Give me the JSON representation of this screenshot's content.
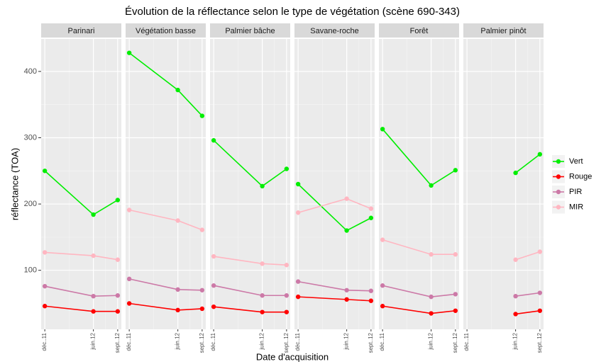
{
  "title": "Évolution de la réflectance selon le type de végétation (scène 690-343)",
  "x_label": "Date d'acquisition",
  "y_label": "réflectance (TOA)",
  "chart_data": [
    {
      "type": "line",
      "title": "Parinari",
      "x": [
        "2011-12",
        "2012-06",
        "2012-09"
      ],
      "xlim": [
        "2011-12",
        "2012-09"
      ],
      "xticks": [
        {
          "value": "2011-12",
          "label": "déc..11"
        },
        {
          "value": "2012-06",
          "label": "juin.12"
        },
        {
          "value": "2012-09",
          "label": "sept..12"
        }
      ],
      "ylim": [
        11,
        449
      ],
      "yticks": [
        100,
        200,
        300,
        400
      ],
      "grid": true,
      "series": [
        {
          "name": "Vert",
          "color": "#00ee00",
          "values": [
            250,
            184,
            206
          ]
        },
        {
          "name": "Rouge",
          "color": "#ff0000",
          "values": [
            46,
            38,
            38
          ]
        },
        {
          "name": "PIR",
          "color": "#cc79a7",
          "values": [
            76,
            61,
            62
          ]
        },
        {
          "name": "MIR",
          "color": "#ffb6c1",
          "values": [
            127,
            122,
            116
          ]
        }
      ]
    },
    {
      "type": "line",
      "title": "Végétation basse",
      "x": [
        "2011-12",
        "2012-06",
        "2012-09"
      ],
      "xlim": [
        "2011-12",
        "2012-09"
      ],
      "xticks": [
        {
          "value": "2011-12",
          "label": "déc..11"
        },
        {
          "value": "2012-06",
          "label": "juin.12"
        },
        {
          "value": "2012-09",
          "label": "sept..12"
        }
      ],
      "ylim": [
        11,
        449
      ],
      "yticks": [
        100,
        200,
        300,
        400
      ],
      "grid": true,
      "series": [
        {
          "name": "Vert",
          "color": "#00ee00",
          "values": [
            428,
            372,
            333
          ]
        },
        {
          "name": "Rouge",
          "color": "#ff0000",
          "values": [
            50,
            40,
            42
          ]
        },
        {
          "name": "PIR",
          "color": "#cc79a7",
          "values": [
            87,
            71,
            70
          ]
        },
        {
          "name": "MIR",
          "color": "#ffb6c1",
          "values": [
            191,
            175,
            161
          ]
        }
      ]
    },
    {
      "type": "line",
      "title": "Palmier bâche",
      "x": [
        "2011-12",
        "2012-06",
        "2012-09"
      ],
      "xlim": [
        "2011-12",
        "2012-09"
      ],
      "xticks": [
        {
          "value": "2011-12",
          "label": "déc..11"
        },
        {
          "value": "2012-06",
          "label": "juin.12"
        },
        {
          "value": "2012-09",
          "label": "sept..12"
        }
      ],
      "ylim": [
        11,
        449
      ],
      "yticks": [
        100,
        200,
        300,
        400
      ],
      "grid": true,
      "series": [
        {
          "name": "Vert",
          "color": "#00ee00",
          "values": [
            296,
            227,
            253
          ]
        },
        {
          "name": "Rouge",
          "color": "#ff0000",
          "values": [
            45,
            37,
            37
          ]
        },
        {
          "name": "PIR",
          "color": "#cc79a7",
          "values": [
            77,
            62,
            62
          ]
        },
        {
          "name": "MIR",
          "color": "#ffb6c1",
          "values": [
            121,
            110,
            108
          ]
        }
      ]
    },
    {
      "type": "line",
      "title": "Savane-roche",
      "x": [
        "2011-12",
        "2012-06",
        "2012-09"
      ],
      "xlim": [
        "2011-12",
        "2012-09"
      ],
      "xticks": [
        {
          "value": "2011-12",
          "label": "déc..11"
        },
        {
          "value": "2012-06",
          "label": "juin.12"
        },
        {
          "value": "2012-09",
          "label": "sept..12"
        }
      ],
      "ylim": [
        11,
        449
      ],
      "yticks": [
        100,
        200,
        300,
        400
      ],
      "grid": true,
      "series": [
        {
          "name": "Vert",
          "color": "#00ee00",
          "values": [
            230,
            160,
            179
          ]
        },
        {
          "name": "Rouge",
          "color": "#ff0000",
          "values": [
            60,
            56,
            54
          ]
        },
        {
          "name": "PIR",
          "color": "#cc79a7",
          "values": [
            83,
            70,
            69
          ]
        },
        {
          "name": "MIR",
          "color": "#ffb6c1",
          "values": [
            187,
            208,
            193
          ]
        }
      ]
    },
    {
      "type": "line",
      "title": "Forêt",
      "x": [
        "2011-12",
        "2012-06",
        "2012-09"
      ],
      "xlim": [
        "2011-12",
        "2012-09"
      ],
      "xticks": [
        {
          "value": "2011-12",
          "label": "déc..11"
        },
        {
          "value": "2012-06",
          "label": "juin.12"
        },
        {
          "value": "2012-09",
          "label": "sept..12"
        }
      ],
      "ylim": [
        11,
        449
      ],
      "yticks": [
        100,
        200,
        300,
        400
      ],
      "grid": true,
      "series": [
        {
          "name": "Vert",
          "color": "#00ee00",
          "values": [
            313,
            228,
            251
          ]
        },
        {
          "name": "Rouge",
          "color": "#ff0000",
          "values": [
            46,
            35,
            39
          ]
        },
        {
          "name": "PIR",
          "color": "#cc79a7",
          "values": [
            77,
            60,
            64
          ]
        },
        {
          "name": "MIR",
          "color": "#ffb6c1",
          "values": [
            146,
            124,
            124
          ]
        }
      ]
    },
    {
      "type": "line",
      "title": "Palmier pinôt",
      "x": [
        "2011-12",
        "2012-06",
        "2012-09"
      ],
      "xlim": [
        "2011-12",
        "2012-09"
      ],
      "xticks": [
        {
          "value": "2011-12",
          "label": "déc..11"
        },
        {
          "value": "2012-06",
          "label": "juin.12"
        },
        {
          "value": "2012-09",
          "label": "sept..12"
        }
      ],
      "ylim": [
        11,
        449
      ],
      "yticks": [
        100,
        200,
        300,
        400
      ],
      "grid": true,
      "series": [
        {
          "name": "Vert",
          "color": "#00ee00",
          "values": [
            null,
            247,
            275
          ]
        },
        {
          "name": "Rouge",
          "color": "#ff0000",
          "values": [
            null,
            34,
            39
          ]
        },
        {
          "name": "PIR",
          "color": "#cc79a7",
          "values": [
            null,
            61,
            66
          ]
        },
        {
          "name": "MIR",
          "color": "#ffb6c1",
          "values": [
            null,
            116,
            128
          ]
        }
      ]
    }
  ]
}
